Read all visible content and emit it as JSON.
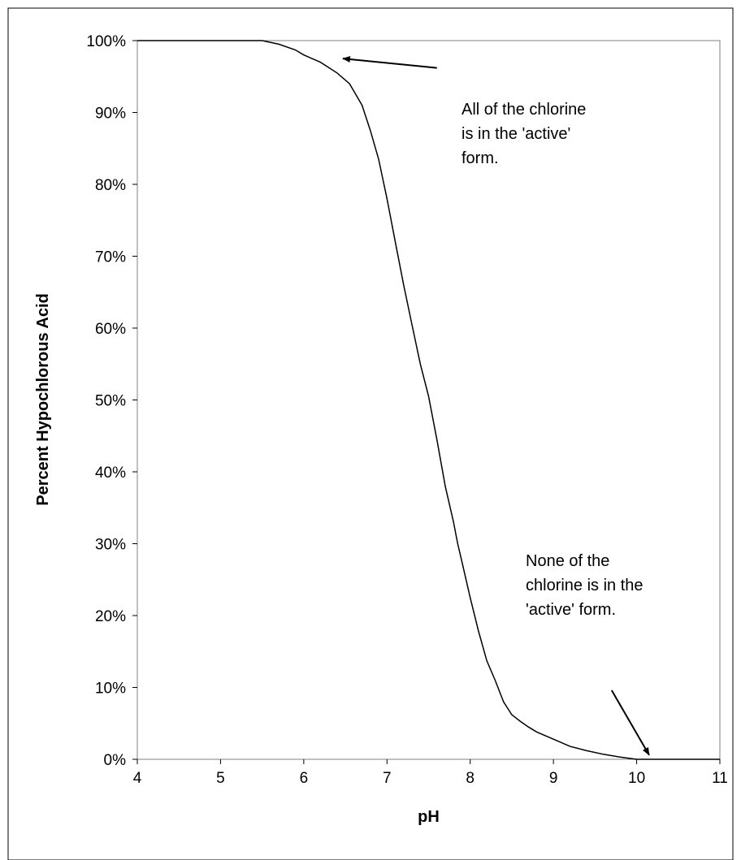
{
  "chart_data": {
    "type": "line",
    "title": "",
    "xlabel": "pH",
    "ylabel": "Percent Hypochlorous Acid",
    "xlim": [
      4,
      11
    ],
    "ylim": [
      0,
      100
    ],
    "x_ticks": [
      "4",
      "5",
      "6",
      "7",
      "8",
      "9",
      "10",
      "11"
    ],
    "y_ticks": [
      "0%",
      "10%",
      "20%",
      "30%",
      "40%",
      "50%",
      "60%",
      "70%",
      "80%",
      "90%",
      "100%"
    ],
    "grid": false,
    "series": [
      {
        "name": "",
        "x": [
          4,
          4.5,
          5,
          5.5,
          5.7,
          5.9,
          6.0,
          6.2,
          6.4,
          6.55,
          6.7,
          6.8,
          6.9,
          7.0,
          7.1,
          7.2,
          7.3,
          7.4,
          7.5,
          7.6,
          7.7,
          7.8,
          7.85,
          7.9,
          8.0,
          8.1,
          8.2,
          8.3,
          8.4,
          8.5,
          8.6,
          8.7,
          8.8,
          9.0,
          9.2,
          9.4,
          9.6,
          9.8,
          10.0,
          10.2,
          10.5,
          11.0
        ],
        "y": [
          100,
          100,
          100,
          100,
          99.5,
          98.7,
          98,
          97,
          95.5,
          94,
          91,
          87.5,
          83.5,
          78,
          72,
          66,
          60.5,
          55,
          50.5,
          44.5,
          38,
          33,
          30,
          27.5,
          22.5,
          17.8,
          13.7,
          11,
          8,
          6.2,
          5.3,
          4.5,
          3.8,
          2.8,
          1.8,
          1.2,
          0.7,
          0.3,
          0,
          0,
          0,
          0
        ]
      }
    ],
    "annotations": [
      {
        "lines": [
          "All of the chlorine",
          "is in the 'active'",
          "form."
        ],
        "arrow_from": [
          7.6,
          96.2
        ],
        "arrow_to": [
          6.47,
          97.5
        ]
      },
      {
        "lines": [
          "None of the",
          "chlorine is in the",
          "'active' form."
        ],
        "arrow_from": [
          9.7,
          9.6
        ],
        "arrow_to": [
          10.15,
          0.6
        ]
      }
    ],
    "colors": {
      "line": "#000000",
      "plot_border": "#808080",
      "frame": "#000000"
    }
  }
}
